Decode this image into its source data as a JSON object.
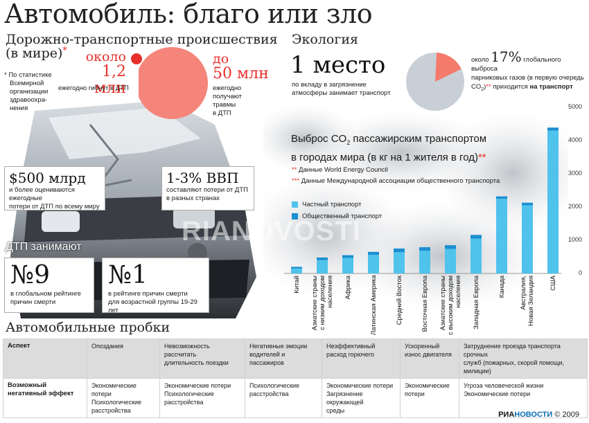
{
  "title": "Автомобиль: благо или зло",
  "accidents": {
    "heading_line1": "Дорожно-транспортные происшествия",
    "heading_line2": "(в мире)",
    "asterisk": "*",
    "footnote": [
      "* По статистике",
      "Всемирной",
      "организации",
      "здравоохра-",
      "нения"
    ],
    "killed_about": "около",
    "killed_value": "1,2 млн",
    "killed_desc": "ежегодно гибнут в ДТП",
    "injured_about": "до",
    "injured_value": "50 млн",
    "injured_desc": [
      "ежегодно",
      "получают",
      "травмы",
      "в ДТП"
    ],
    "cost_value": "$500 млрд",
    "cost_desc": [
      "и более оцениваются ежегодные",
      "потери от ДТП по всему миру"
    ],
    "gdp_value": "1-3% ВВП",
    "gdp_desc": [
      "составляют потери от ДТП",
      "в разных странах"
    ],
    "rank_heading": "ДТП занимают",
    "rank_global_value": "№9",
    "rank_global_desc": [
      "в глобальном рейтинге",
      "причин смерти"
    ],
    "rank_age_value": "№1",
    "rank_age_desc": [
      "в рейтинге причин смерти",
      "для возрастной группы 19-29 лет"
    ]
  },
  "ecology": {
    "heading": "Экология",
    "place_value": "1 место",
    "place_desc": [
      "по вкладу в загрязнение",
      "атмосферы занимает транспорт"
    ],
    "pie_share": 0.17,
    "pie_text_pre": "около",
    "pie_percent": "17%",
    "pie_text_1": "глобального выброса",
    "pie_text_2": "парниковых газов (в первую очередь",
    "pie_text_3": "CO",
    "pie_text_sub": "2",
    "pie_text_4": ")",
    "pie_text_stars": "**",
    "pie_text_5": "приходится",
    "pie_text_bold": "на транспорт",
    "pie_color": "#f47a6c",
    "pie_rest_color": "#c8cfd6"
  },
  "chart_data": {
    "type": "bar",
    "title_line1_a": "Выброс CO",
    "title_line1_sub": "2",
    "title_line1_b": "пассажирским транспортом",
    "title_line2": "в городах мира (в кг на 1 жителя в год)",
    "title_stars": "**",
    "source1_stars": "**",
    "source1": "Данные World Energy Council",
    "source2_stars": "***",
    "source2": "Данные Международной ассоциации общественного транспорта",
    "legend": [
      {
        "name": "Частный транспорт",
        "color": "#4fc3ec"
      },
      {
        "name": "Общественный транспорт",
        "color": "#1a8fd0"
      }
    ],
    "categories": [
      "Китай",
      "Азиатские страны с низким доходом населения",
      "Африка",
      "Латинская Америка",
      "Средний Восток",
      "Восточная Европа",
      "Азиатские страны с высоким доходом населения",
      "Западная Европа",
      "Канада",
      "Австралия, Новая Зеландия",
      "США"
    ],
    "category_lines": [
      [
        "Китай"
      ],
      [
        "Азиатские страны",
        "с низким доходом",
        "населения"
      ],
      [
        "Африка"
      ],
      [
        "Латинская Америка"
      ],
      [
        "Средний Восток"
      ],
      [
        "Восточная Европа"
      ],
      [
        "Азиатские страны",
        "с высоким доходом",
        "населения"
      ],
      [
        "Западная Европа"
      ],
      [
        "Канада"
      ],
      [
        "Австралия,",
        "Новая Зеландия"
      ],
      [
        "США"
      ]
    ],
    "series": [
      {
        "name": "Частный транспорт",
        "values": [
          150,
          400,
          470,
          560,
          640,
          680,
          740,
          1050,
          2250,
          2050,
          4300
        ]
      },
      {
        "name": "Общественный транспорт",
        "values": [
          50,
          80,
          80,
          90,
          110,
          110,
          110,
          110,
          70,
          80,
          90
        ]
      }
    ],
    "yticks": [
      "5000",
      "4000",
      "3000",
      "2000",
      "1000",
      "0"
    ],
    "ylim": [
      0,
      5000
    ],
    "grid": false
  },
  "jams": {
    "heading": "Автомобильные пробки",
    "row1_label": "Аспект",
    "row2_label": [
      "Возможный",
      "негативный эффект"
    ],
    "columns": [
      {
        "aspect": [
          "Опоздания"
        ],
        "effect": [
          "Экономические потери",
          "Психологические",
          "расстройства"
        ]
      },
      {
        "aspect": [
          "Невозможность рассчитать",
          "длительность поездки"
        ],
        "effect": [
          "Экономические потери",
          "Психологические",
          "расстройства"
        ]
      },
      {
        "aspect": [
          "Негативные эмоции",
          "водителей и пассажиров"
        ],
        "effect": [
          "Психологические",
          "расстройства"
        ]
      },
      {
        "aspect": [
          "Неэффективный",
          "расход горючего"
        ],
        "effect": [
          "Экономические потери",
          "Загрязнение окружающей",
          "среды"
        ]
      },
      {
        "aspect": [
          "Ускоренный",
          "износ двигателя"
        ],
        "effect": [
          "Экономические",
          "потери"
        ]
      },
      {
        "aspect": [
          "Затруднение проезда транспорта срочных",
          "служб (пожарных, скорой помощи, милиции)"
        ],
        "effect": [
          "Угроза человеческой жизни",
          "Экономические потери"
        ]
      }
    ]
  },
  "watermark": "RIANOVOSTI",
  "footer": {
    "brand_a": "РИА",
    "brand_b": "НОВОСТИ",
    "copyright": "© 2009"
  }
}
